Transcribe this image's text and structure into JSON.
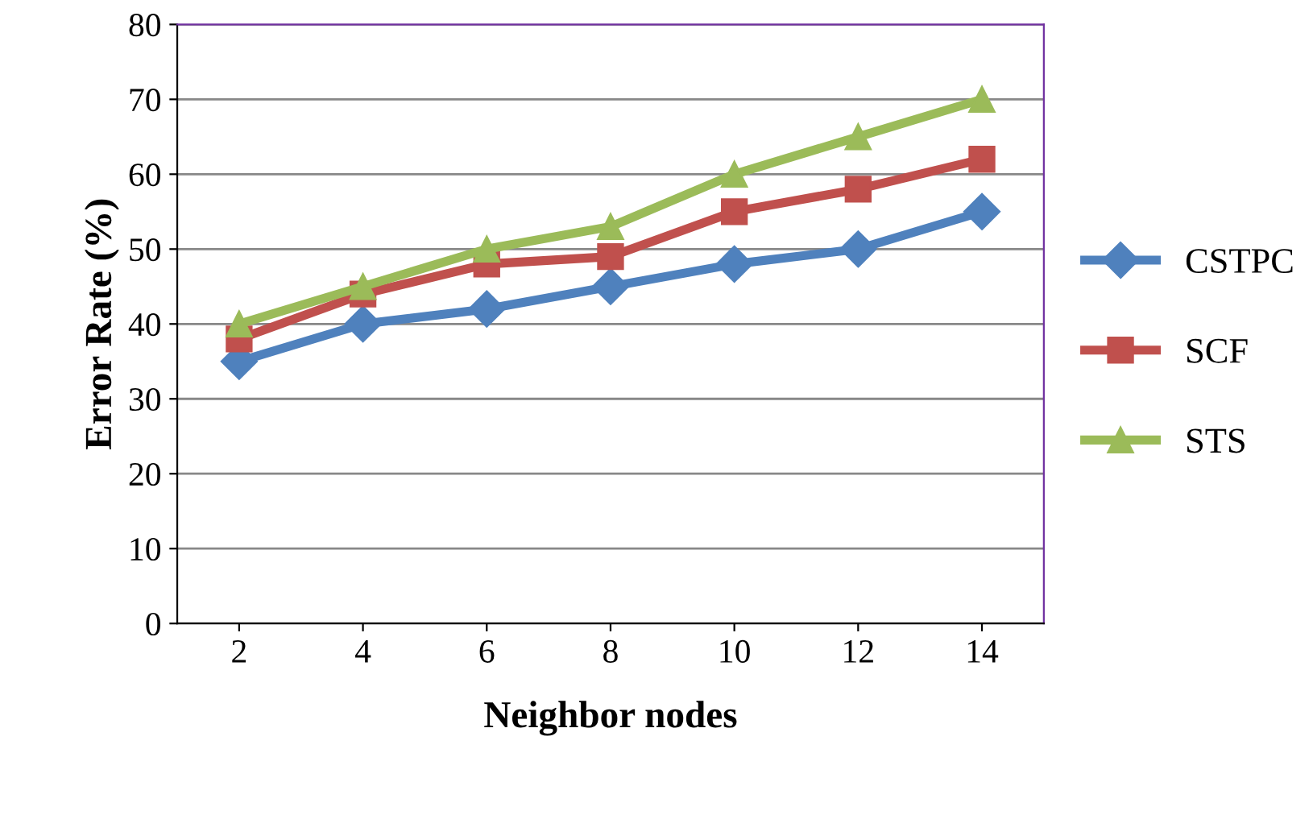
{
  "chart_data": {
    "type": "line",
    "xlabel": "Neighbor nodes",
    "ylabel": "Error Rate (%)",
    "categories": [
      "2",
      "4",
      "6",
      "8",
      "10",
      "12",
      "14"
    ],
    "series": [
      {
        "name": "CSTPC",
        "color": "#4f81bd",
        "marker": "diamond",
        "values": [
          35,
          40,
          42,
          45,
          48,
          50,
          55
        ]
      },
      {
        "name": "SCF",
        "color": "#c0504d",
        "marker": "square",
        "values": [
          38,
          44,
          48,
          49,
          55,
          58,
          62
        ]
      },
      {
        "name": "STS",
        "color": "#9bbb59",
        "marker": "triangle",
        "values": [
          40,
          45,
          50,
          53,
          60,
          65,
          70
        ]
      }
    ],
    "ylim": [
      0,
      80
    ],
    "yticks": [
      0,
      10,
      20,
      30,
      40,
      50,
      60,
      70,
      80
    ],
    "grid": "y",
    "legend": "right",
    "line_style": "solid"
  }
}
